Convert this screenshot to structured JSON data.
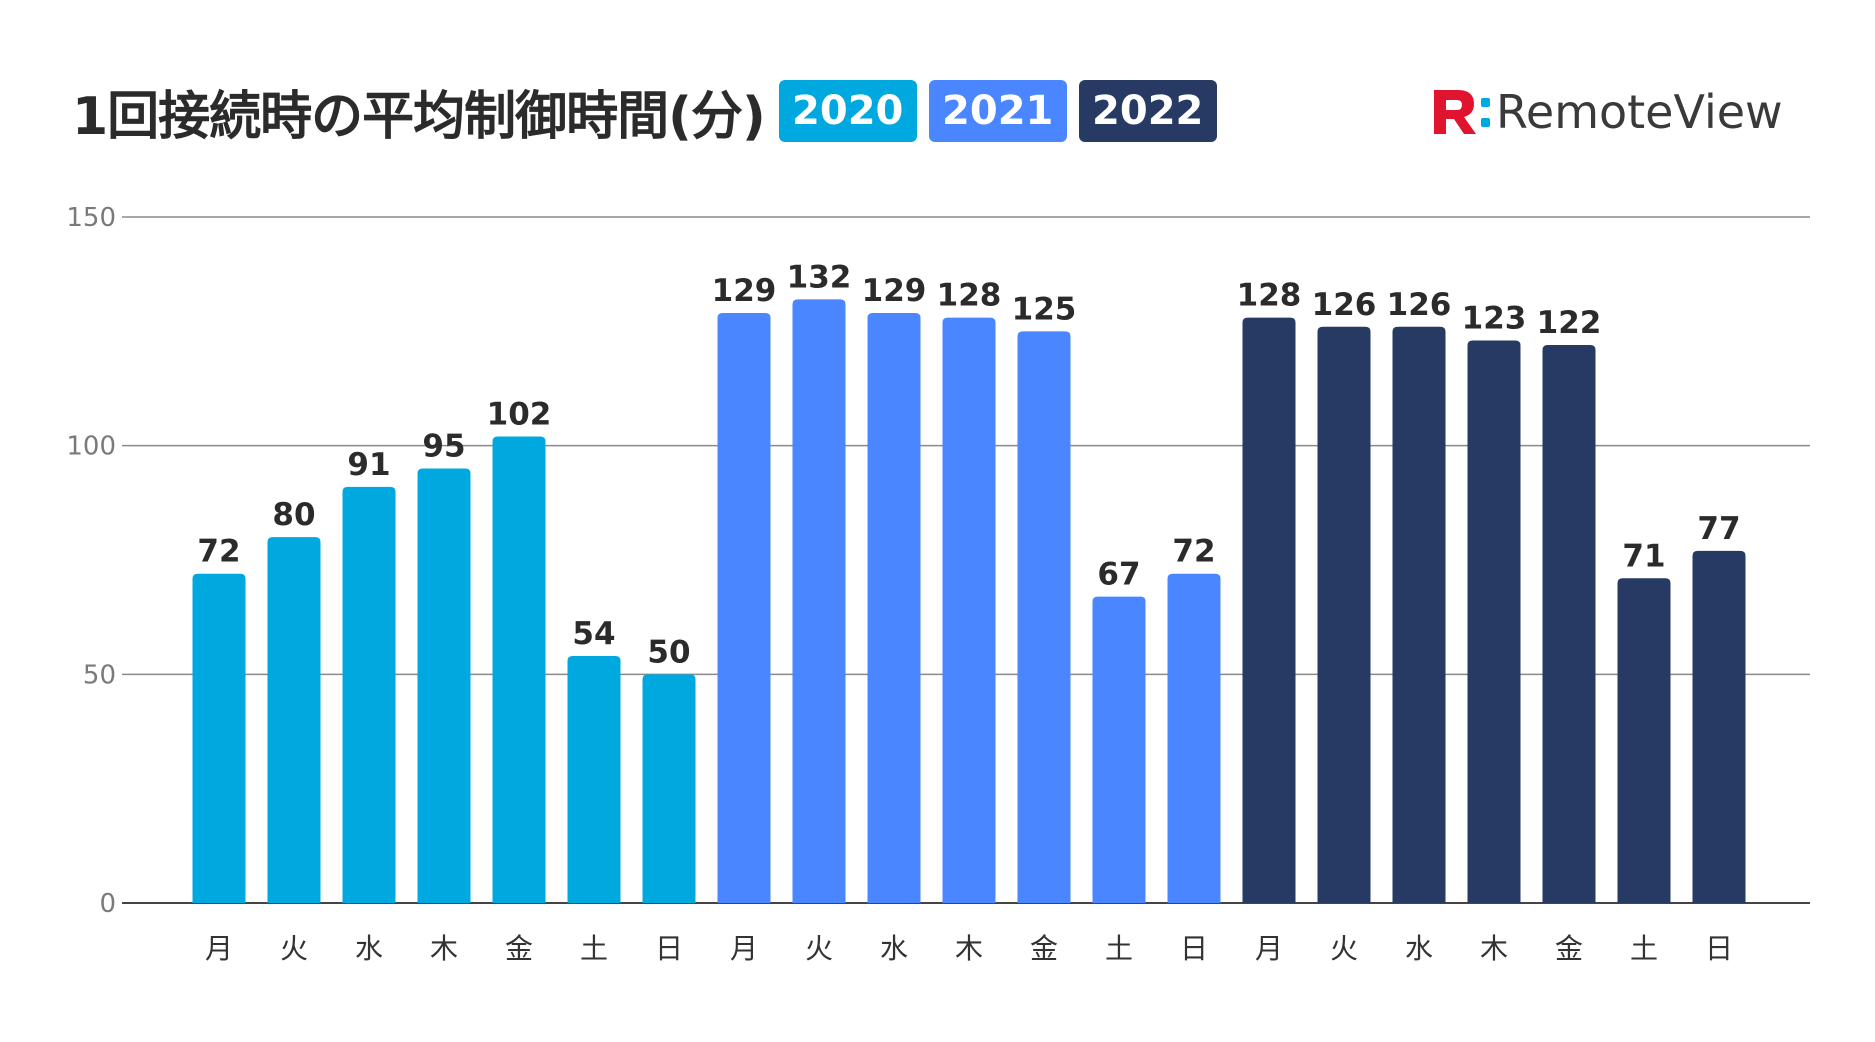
{
  "header": {
    "title": "1回接続時の平均制御時間(分)"
  },
  "logo": {
    "text": "RemoteView",
    "mark_icon": "remoteview-r-mark-icon",
    "mark_color": "#e0142e",
    "dot_color": "#00a8e0"
  },
  "chart_data": {
    "type": "bar",
    "title": "1回接続時の平均制御時間(分)",
    "xlabel": "",
    "ylabel": "",
    "ylim": [
      0,
      150
    ],
    "yticks": [
      0,
      50,
      100,
      150
    ],
    "grid": true,
    "legend_placement": "top",
    "categories": [
      "月",
      "火",
      "水",
      "木",
      "金",
      "土",
      "日"
    ],
    "series": [
      {
        "name": "2020",
        "color": "#00a8e0",
        "values": [
          72,
          80,
          91,
          95,
          102,
          54,
          50
        ]
      },
      {
        "name": "2021",
        "color": "#4a86ff",
        "values": [
          129,
          132,
          129,
          128,
          125,
          67,
          72
        ]
      },
      {
        "name": "2022",
        "color": "#263a63",
        "values": [
          128,
          126,
          126,
          123,
          122,
          71,
          77
        ]
      }
    ]
  }
}
